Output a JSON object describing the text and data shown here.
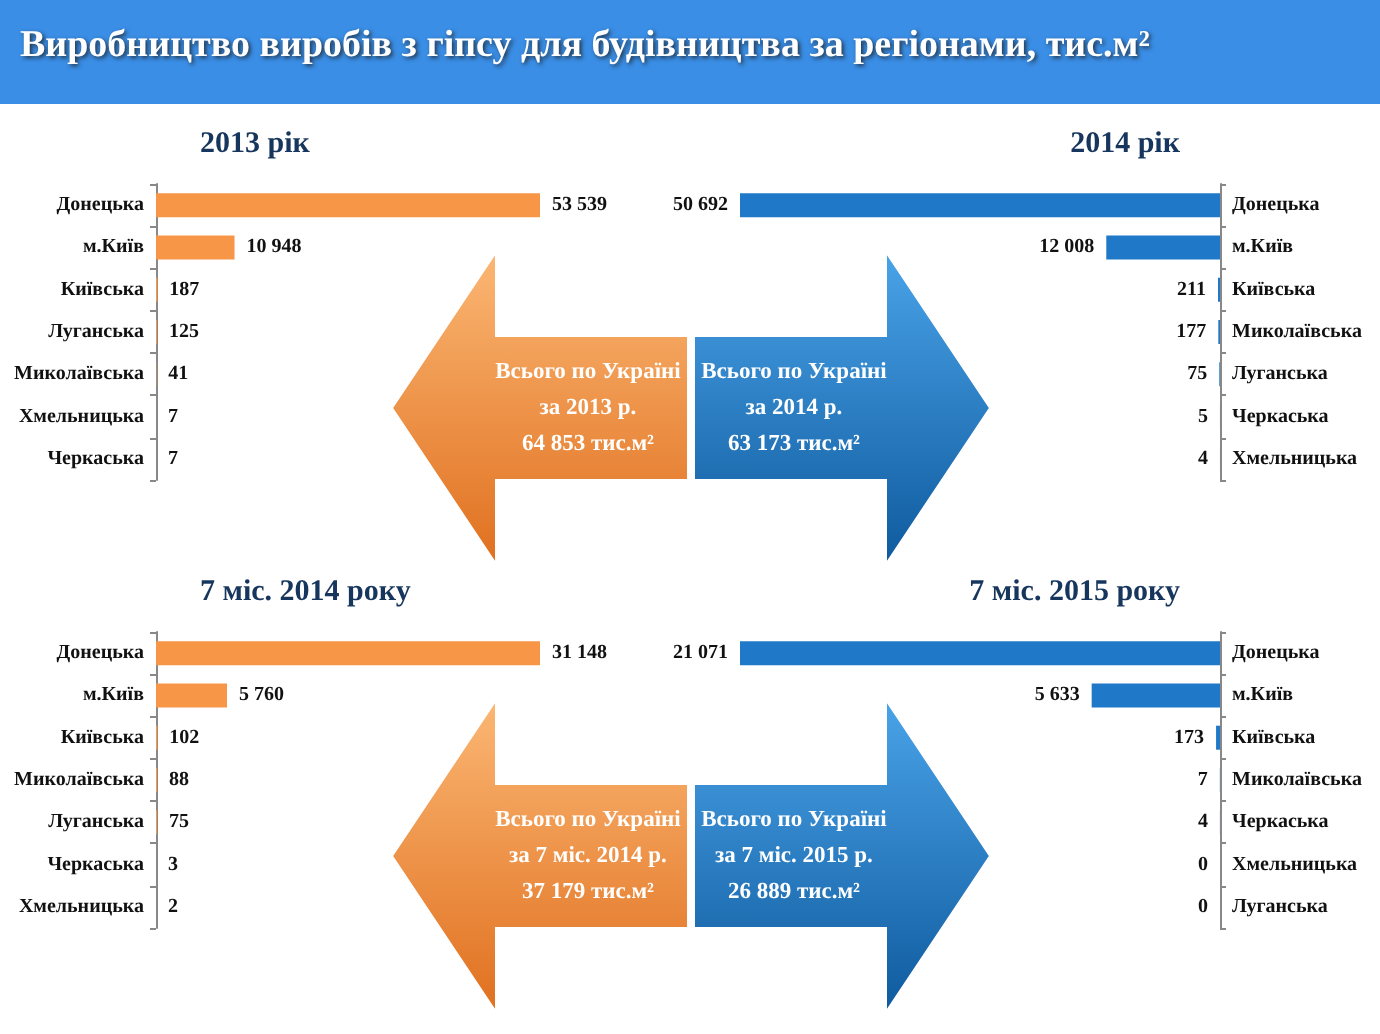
{
  "chart_data": [
    {
      "type": "other",
      "title": "Виробництво виробів з гіпсу для будівництва за регіонами, тис.м²"
    },
    {
      "type": "bar",
      "orientation": "horizontal",
      "title": "2013 рік",
      "categories": [
        "Донецька",
        "м.Київ",
        "Київська",
        "Луганська",
        "Миколаївська",
        "Хмельницька",
        "Черкаська"
      ],
      "color": "#f79646",
      "values": [
        53539,
        10948,
        187,
        125,
        41,
        7,
        7
      ],
      "value_labels": [
        "53 539",
        "10 948",
        "187",
        "125",
        "41",
        "7",
        "7"
      ],
      "annotations": [
        "Всього по Україні\nза 2013 р.\n64 853 тис.м²"
      ]
    },
    {
      "type": "bar",
      "orientation": "horizontal",
      "title": "2014 рік",
      "categories": [
        "Донецька",
        "м.Київ",
        "Київська",
        "Миколаївська",
        "Луганська",
        "Черкаська",
        "Хмельницька"
      ],
      "color": "#1f78c8",
      "values": [
        50692,
        12008,
        211,
        177,
        75,
        5,
        4
      ],
      "value_labels": [
        "50 692",
        "12 008",
        "211",
        "177",
        "75",
        "5",
        "4"
      ],
      "annotations": [
        "Всього по Україні\nза 2014 р.\n63 173 тис.м²"
      ]
    },
    {
      "type": "bar",
      "orientation": "horizontal",
      "title": "7 міс. 2014 року",
      "categories": [
        "Донецька",
        "м.Київ",
        "Київська",
        "Миколаївська",
        "Луганська",
        "Черкаська",
        "Хмельницька"
      ],
      "color": "#f79646",
      "values": [
        31148,
        5760,
        102,
        88,
        75,
        3,
        2
      ],
      "value_labels": [
        "31 148",
        "5 760",
        "102",
        "88",
        "75",
        "3",
        "2"
      ],
      "annotations": [
        "Всього по Україні\nза 7 міс. 2014 р.\n37 179 тис.м²"
      ]
    },
    {
      "type": "bar",
      "orientation": "horizontal",
      "title": "7 міс. 2015 року",
      "categories": [
        "Донецька",
        "м.Київ",
        "Київська",
        "Миколаївська",
        "Черкаська",
        "Хмельницька",
        "Луганська"
      ],
      "color": "#1f78c8",
      "values": [
        21071,
        5633,
        173,
        7,
        4,
        0,
        0
      ],
      "value_labels": [
        "21 071",
        "5 633",
        "173",
        "7",
        "4",
        "0",
        "0"
      ],
      "annotations": [
        "Всього по Україні\nза 7 міс. 2015 р.\n26 889 тис.м²"
      ]
    }
  ]
}
